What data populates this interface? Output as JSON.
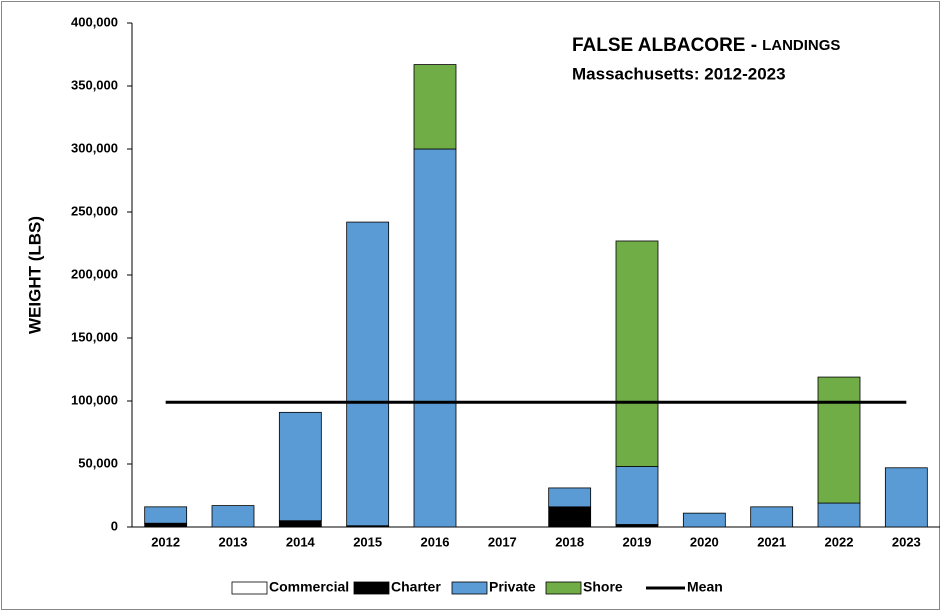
{
  "chart_data": {
    "type": "stacked_bar",
    "title": "FALSE ALBACORE -",
    "title_suffix": "LANDINGS",
    "subtitle": "Massachusetts: 2012-2023",
    "y_label": "WEIGHT (LBS)",
    "categories": [
      "2012",
      "2013",
      "2014",
      "2015",
      "2016",
      "2017",
      "2018",
      "2019",
      "2020",
      "2021",
      "2022",
      "2023"
    ],
    "series": [
      {
        "name": "Commercial",
        "color": "#ffffff",
        "values": [
          0,
          0,
          0,
          0,
          0,
          0,
          0,
          0,
          0,
          0,
          0,
          0
        ]
      },
      {
        "name": "Charter",
        "color": "#000000",
        "values": [
          3000,
          0,
          5000,
          1000,
          0,
          0,
          16000,
          2000,
          0,
          0,
          0,
          0
        ]
      },
      {
        "name": "Private",
        "color": "#5b9bd5",
        "values": [
          13000,
          17000,
          86000,
          241000,
          300000,
          0,
          15000,
          46000,
          11000,
          16000,
          19000,
          47000
        ]
      },
      {
        "name": "Shore",
        "color": "#70ad47",
        "values": [
          0,
          0,
          0,
          0,
          67000,
          0,
          0,
          179000,
          0,
          0,
          100000,
          0
        ]
      }
    ],
    "mean": {
      "name": "Mean",
      "color": "#000000",
      "value": 99000
    },
    "ylim": [
      0,
      400000
    ],
    "yticks": [
      0,
      {
        "value": 50000,
        "label": "50,000"
      },
      {
        "value": 100000,
        "label": "100,000"
      },
      {
        "value": 150000,
        "label": "150,000"
      },
      {
        "value": 200000,
        "label": "200,000"
      },
      {
        "value": 250000,
        "label": "250,000"
      },
      {
        "value": 300000,
        "label": "300,000"
      },
      {
        "value": 350000,
        "label": "350,000"
      },
      {
        "value": 400000,
        "label": "400,000"
      }
    ],
    "grid": false,
    "legend": "bottom"
  }
}
